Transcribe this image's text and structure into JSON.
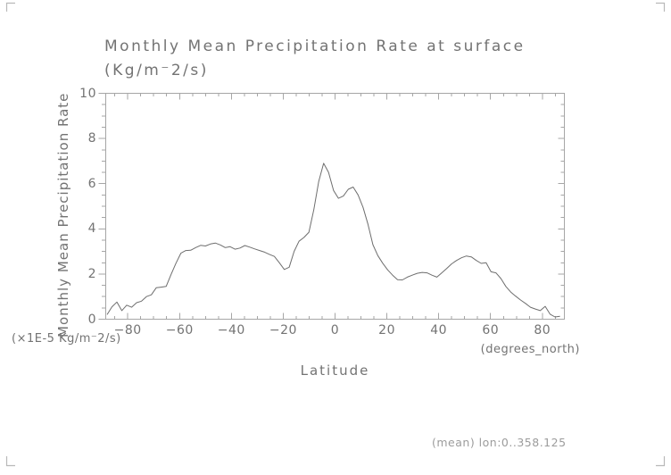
{
  "figure": {
    "title_line1": "Monthly Mean Precipitation Rate at surface",
    "title_line2": "(Kg/m⁻2/s)",
    "y_axis_label": "Monthly Mean Precipitation Rate",
    "y_units_note": "(×1E-5 Kg/m⁻2/s)",
    "x_axis_label": "Latitude",
    "x_units_note": "(degrees_north)",
    "footer_note": "(mean) lon:0..358.125",
    "colors": {
      "text": "#737373",
      "axis": "#a6a6a6",
      "line": "#6e6e6e",
      "crop_marks": "#b9b9b9",
      "footer_text": "#9c9c9c",
      "background": "#ffffff"
    }
  },
  "chart_data": {
    "type": "line",
    "title": "Monthly Mean Precipitation Rate at surface (Kg/m⁻2/s)",
    "xlabel": "Latitude (degrees_north)",
    "ylabel": "Monthly Mean Precipitation Rate (×1E-5 Kg/m⁻2/s)",
    "annotation": "(mean) lon:0..358.125",
    "grid": false,
    "legend": false,
    "xlim": [
      -88.5,
      88.5
    ],
    "ylim": [
      0,
      10
    ],
    "x_major_ticks": [
      -80,
      -60,
      -40,
      -20,
      0,
      20,
      40,
      60,
      80
    ],
    "x_tick_labels": [
      "−80",
      "−60",
      "−40",
      "−20",
      "0",
      "20",
      "40",
      "60",
      "80"
    ],
    "x_minor_tick_step": 5,
    "y_major_ticks": [
      0,
      2,
      4,
      6,
      8,
      10
    ],
    "y_tick_labels": [
      "0",
      "2",
      "4",
      "6",
      "8",
      "10"
    ],
    "y_minor_tick_step": 0.5,
    "series": [
      {
        "name": "precipitation_rate",
        "x": [
          -88.0,
          -86.1,
          -84.2,
          -82.3,
          -80.4,
          -78.5,
          -76.6,
          -74.7,
          -72.8,
          -70.9,
          -69.0,
          -67.1,
          -65.2,
          -63.3,
          -61.4,
          -59.5,
          -57.6,
          -55.7,
          -53.8,
          -51.9,
          -50.0,
          -48.1,
          -46.2,
          -44.3,
          -42.4,
          -40.5,
          -38.6,
          -36.7,
          -34.8,
          -32.9,
          -31.0,
          -29.1,
          -27.2,
          -25.3,
          -23.4,
          -21.5,
          -19.6,
          -17.7,
          -15.8,
          -13.9,
          -12.0,
          -10.1,
          -8.2,
          -6.3,
          -4.4,
          -2.5,
          -0.6,
          1.3,
          3.2,
          5.1,
          7.0,
          8.9,
          10.8,
          12.7,
          14.6,
          16.5,
          18.4,
          20.3,
          22.2,
          24.1,
          26.0,
          27.9,
          29.8,
          31.7,
          33.6,
          35.5,
          37.4,
          39.3,
          41.2,
          43.1,
          45.0,
          46.9,
          48.8,
          50.7,
          52.6,
          54.5,
          56.4,
          58.3,
          60.2,
          62.1,
          64.0,
          65.9,
          67.8,
          69.7,
          71.6,
          73.5,
          75.4,
          77.3,
          79.2,
          81.1,
          83.0,
          84.9,
          86.8
        ],
        "y": [
          0.2,
          0.55,
          0.76,
          0.38,
          0.62,
          0.53,
          0.73,
          0.8,
          1.0,
          1.08,
          1.39,
          1.42,
          1.45,
          1.98,
          2.48,
          2.92,
          3.04,
          3.05,
          3.17,
          3.27,
          3.24,
          3.33,
          3.37,
          3.29,
          3.17,
          3.21,
          3.1,
          3.15,
          3.26,
          3.19,
          3.11,
          3.04,
          2.97,
          2.87,
          2.78,
          2.5,
          2.2,
          2.3,
          3.0,
          3.45,
          3.62,
          3.85,
          4.85,
          6.1,
          6.9,
          6.5,
          5.7,
          5.35,
          5.45,
          5.75,
          5.85,
          5.5,
          4.95,
          4.2,
          3.3,
          2.82,
          2.48,
          2.18,
          1.95,
          1.75,
          1.74,
          1.86,
          1.95,
          2.03,
          2.07,
          2.05,
          1.95,
          1.86,
          2.05,
          2.25,
          2.45,
          2.6,
          2.72,
          2.8,
          2.76,
          2.6,
          2.47,
          2.5,
          2.1,
          2.05,
          1.8,
          1.45,
          1.2,
          1.02,
          0.85,
          0.7,
          0.53,
          0.45,
          0.38,
          0.57,
          0.22,
          0.1,
          0.13
        ]
      }
    ]
  }
}
